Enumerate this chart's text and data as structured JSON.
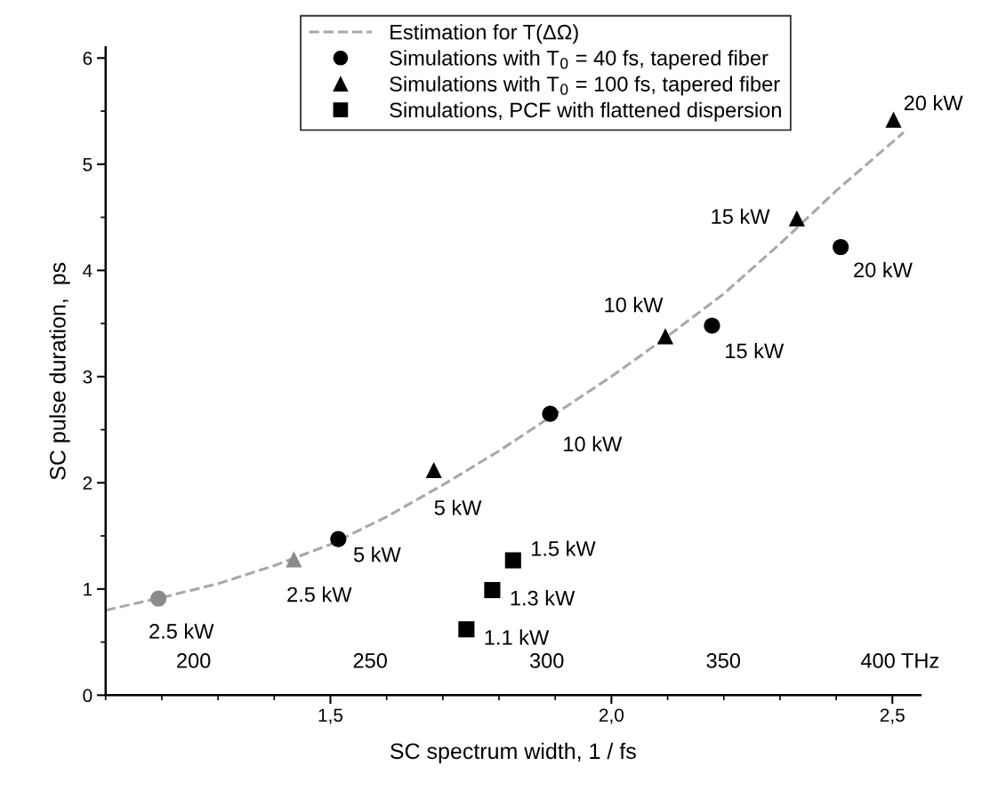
{
  "chart_data": {
    "type": "scatter",
    "xlabel": "SC spectrum width, 1 / fs",
    "ylabel": "SC pulse duration,  ps",
    "xlim": [
      1.1,
      2.55
    ],
    "xticks": [
      {
        "value": 1.5,
        "label": "1,5"
      },
      {
        "value": 2.0,
        "label": "2,0"
      },
      {
        "value": 2.5,
        "label": "2,5"
      }
    ],
    "ylim": [
      0,
      6.1
    ],
    "yticks": [
      0,
      1,
      2,
      3,
      4,
      5,
      6
    ],
    "x2lim": [
      175.1,
      405.8
    ],
    "x2ticks": [
      200,
      250,
      300,
      350,
      {
        "value": 400,
        "label": "400 THz"
      }
    ],
    "grid": false,
    "legend": "top",
    "series": [
      {
        "name": "Estimation for T(ΔΩ)",
        "type": "line",
        "color": "#a8a8a8",
        "line_style": "dashed",
        "marker": "none",
        "x": [
          1.1,
          1.2,
          1.3,
          1.4,
          1.5,
          1.6,
          1.7,
          1.8,
          1.9,
          2.0,
          2.1,
          2.2,
          2.3,
          2.4,
          2.52
        ],
        "values": [
          0.8,
          0.92,
          1.05,
          1.22,
          1.42,
          1.68,
          1.98,
          2.3,
          2.65,
          3.0,
          3.38,
          3.78,
          4.25,
          4.75,
          5.3
        ]
      },
      {
        "name": "Simulations with T$_{0}$ = 40 fs, tapered fiber",
        "marker": "circle",
        "color": "#000000",
        "colors": [
          "#8a8a8a",
          "#000000",
          "#000000",
          "#000000",
          "#000000"
        ],
        "x": [
          1.194,
          1.514,
          1.891,
          2.179,
          2.408
        ],
        "values": [
          0.91,
          1.47,
          2.65,
          3.48,
          4.22
        ]
      },
      {
        "name": "Simulations with T$_{0}$ = 100 fs, tapered fiber",
        "marker": "triangle",
        "color": "#000000",
        "colors": [
          "#8a8a8a",
          "#000000",
          "#000000",
          "#000000",
          "#000000"
        ],
        "x": [
          1.435,
          1.684,
          2.096,
          2.33,
          2.502
        ],
        "values": [
          1.28,
          2.12,
          3.38,
          4.49,
          5.42
        ]
      },
      {
        "name": "Simulations, PCF with flattened dispersion",
        "marker": "square",
        "color": "#000000",
        "x": [
          1.742,
          1.788,
          1.825
        ],
        "values": [
          0.62,
          0.99,
          1.27
        ]
      }
    ],
    "annotations": [
      {
        "text": "2.5 kW",
        "x": 1.194,
        "y": 0.91
      },
      {
        "text": "5 kW",
        "x": 1.514,
        "y": 1.47
      },
      {
        "text": "10 kW",
        "x": 1.891,
        "y": 2.65
      },
      {
        "text": "15 kW",
        "x": 2.179,
        "y": 3.48
      },
      {
        "text": "20 kW",
        "x": 2.408,
        "y": 4.22
      },
      {
        "text": "2.5 kW",
        "x": 1.435,
        "y": 1.28
      },
      {
        "text": "5 kW",
        "x": 1.684,
        "y": 2.12
      },
      {
        "text": "10 kW",
        "x": 2.096,
        "y": 3.38
      },
      {
        "text": "15 kW",
        "x": 2.33,
        "y": 4.49
      },
      {
        "text": "20 kW",
        "x": 2.502,
        "y": 5.42
      },
      {
        "text": "1.1 kW",
        "x": 1.742,
        "y": 0.62
      },
      {
        "text": "1.3 kW",
        "x": 1.788,
        "y": 0.99
      },
      {
        "text": "1.5 kW",
        "x": 1.825,
        "y": 1.27
      }
    ]
  }
}
